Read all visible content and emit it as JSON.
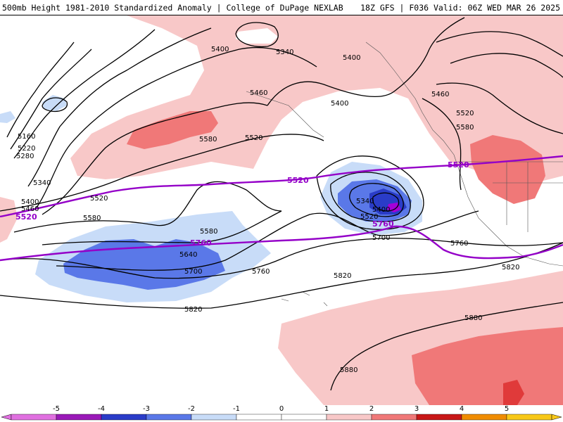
{
  "header": {
    "title_left": "500mb Height 1981-2010 Standardized Anomaly | College of DuPage NEXLAB",
    "title_right": "18Z GFS | F036 Valid: 06Z WED MAR 26 2025"
  },
  "colors": {
    "anom_pos1": "#f8c8c8",
    "anom_pos2": "#f07878",
    "anom_pos3": "#e03a3a",
    "anom_neg1": "#c8dcf8",
    "anom_neg2": "#5a78e8",
    "anom_neg3": "#2a3cc8",
    "anom_neg5": "#a400d8",
    "contour": "#000000",
    "purple_contour": "#9400c8"
  },
  "contour_labels": {
    "l5400_a": "5400",
    "l5340_a": "5340",
    "l5400_b": "5400",
    "l5460_a": "5460",
    "l5400_c": "5400",
    "l5460_b": "5460",
    "l5520_a": "5520",
    "l5580_a": "5580",
    "l5520_b": "5520",
    "l5580_b": "5580",
    "l5160": "5160",
    "l5220": "5220",
    "l5280": "5280",
    "l5340_b": "5340",
    "l5400_d": "5400",
    "l5460_c": "5460",
    "l5520_c": "5520",
    "l5580_c": "5580",
    "l5580_d": "5580",
    "l5640": "5640",
    "l5700_a": "5700",
    "l5760_a": "5760",
    "l5820_a": "5820",
    "l5340_c": "5340",
    "l5400_e": "5400",
    "l5520_d": "5520",
    "l5700_b": "5700",
    "l5760_b": "5760",
    "l5820_b": "5820",
    "l5820_c": "5820",
    "l5880_a": "5880",
    "l5880_b": "5880",
    "l5580_e": "5580"
  },
  "purple_labels": {
    "p5520_a": "5520",
    "p5520_b": "5520",
    "p5520_c": "5520",
    "p5760_a": "5760",
    "p5760_b": "5760"
  },
  "colorbar": {
    "ticks": [
      "-5",
      "-4",
      "-3",
      "-2",
      "-1",
      "0",
      "1",
      "2",
      "3",
      "4",
      "5"
    ],
    "segments": [
      {
        "color": "#e070e0"
      },
      {
        "color": "#9a1ab8"
      },
      {
        "color": "#2a3cc8"
      },
      {
        "color": "#5a78e8"
      },
      {
        "color": "#c8dcf8"
      },
      {
        "color": "#ffffff"
      },
      {
        "color": "#ffffff"
      },
      {
        "color": "#f8c8c8"
      },
      {
        "color": "#f07878"
      },
      {
        "color": "#c81818"
      },
      {
        "color": "#f08c00"
      },
      {
        "color": "#f8c818"
      }
    ]
  }
}
